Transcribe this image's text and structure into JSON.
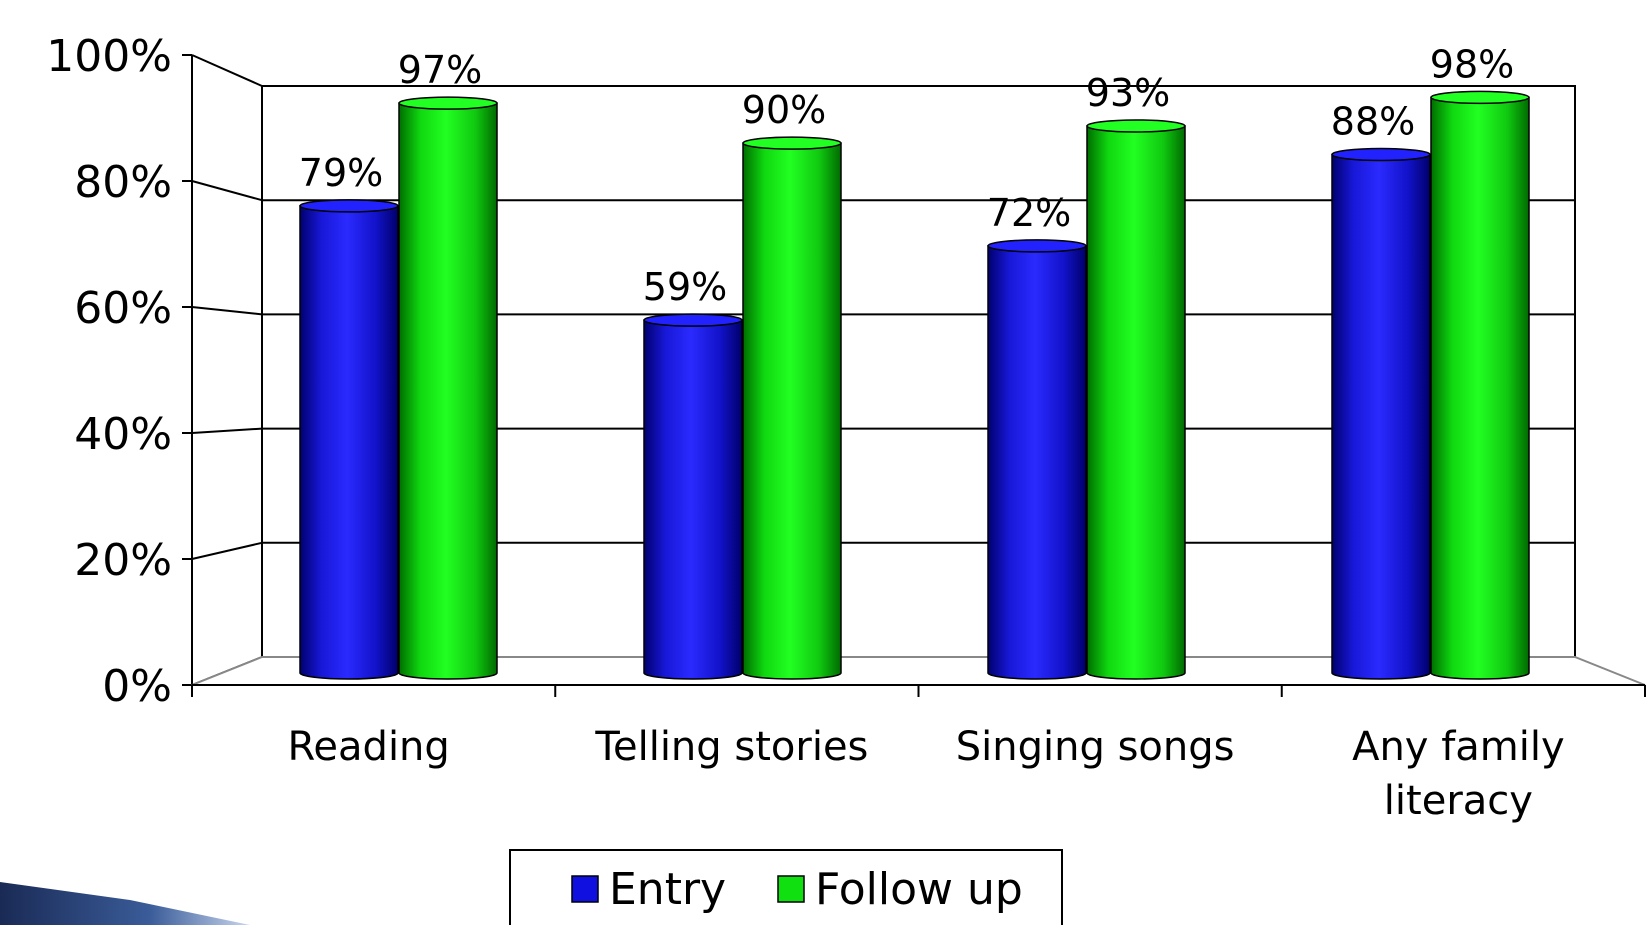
{
  "chart_data": {
    "type": "bar",
    "title": "",
    "xlabel": "",
    "ylabel": "",
    "ylim": [
      0,
      100
    ],
    "y_ticks": [
      "0%",
      "20%",
      "40%",
      "60%",
      "80%",
      "100%"
    ],
    "categories": [
      [
        "Reading"
      ],
      [
        "Telling stories"
      ],
      [
        "Singing songs"
      ],
      [
        "Any family",
        "literacy"
      ]
    ],
    "series": [
      {
        "name": "Entry",
        "color": "#1010e0",
        "values": [
          79,
          59,
          72,
          88
        ],
        "labels": [
          "79%",
          "59%",
          "72%",
          "88%"
        ]
      },
      {
        "name": "Follow up",
        "color": "#10e010",
        "values": [
          97,
          90,
          93,
          98
        ],
        "labels": [
          "97%",
          "90%",
          "93%",
          "98%"
        ]
      }
    ],
    "grid": true,
    "legend_position": "bottom"
  }
}
